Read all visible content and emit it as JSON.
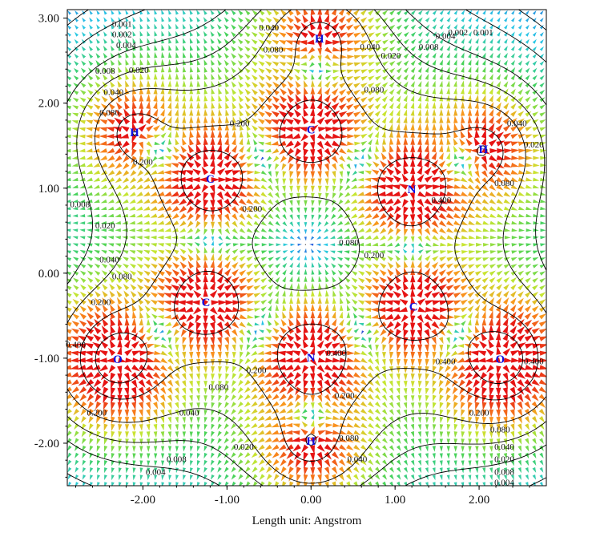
{
  "chart_data": {
    "type": "contour-vector-field",
    "x_axis": {
      "range": [
        -2.9,
        2.8
      ],
      "ticks": [
        -2.0,
        -1.0,
        0.0,
        1.0,
        2.0
      ],
      "tick_labels": [
        "-2.00",
        "-1.00",
        "0.00",
        "1.00",
        "2.00"
      ],
      "title": "Length unit: Angstrom"
    },
    "y_axis": {
      "range": [
        -2.5,
        3.1
      ],
      "ticks": [
        -2.0,
        -1.0,
        0.0,
        1.0,
        2.0,
        3.0
      ],
      "tick_labels": [
        "-2.00",
        "-1.00",
        "0.00",
        "1.00",
        "2.00",
        "3.00"
      ]
    },
    "atoms": [
      {
        "symbol": "H",
        "x": 0.1,
        "y": 2.75
      },
      {
        "symbol": "C",
        "x": 0.0,
        "y": 1.68
      },
      {
        "symbol": "H",
        "x": -2.1,
        "y": 1.65
      },
      {
        "symbol": "H",
        "x": 2.05,
        "y": 1.45
      },
      {
        "symbol": "C",
        "x": -1.2,
        "y": 1.1
      },
      {
        "symbol": "N",
        "x": 1.2,
        "y": 0.98
      },
      {
        "symbol": "C",
        "x": -1.25,
        "y": -0.35
      },
      {
        "symbol": "C",
        "x": 1.22,
        "y": -0.4
      },
      {
        "symbol": "O",
        "x": -2.3,
        "y": -1.02
      },
      {
        "symbol": "N",
        "x": 0.0,
        "y": -1.0
      },
      {
        "symbol": "O",
        "x": 2.25,
        "y": -1.02
      },
      {
        "symbol": "H",
        "x": 0.0,
        "y": -1.98
      }
    ],
    "contour_levels": [
      "0.001",
      "0.002",
      "0.004",
      "0.008",
      "0.020",
      "0.040",
      "0.080",
      "0.200",
      "0.400"
    ],
    "contour_labels": [
      {
        "text": "0.001",
        "x": -2.25,
        "y": 2.92
      },
      {
        "text": "0.002",
        "x": -2.25,
        "y": 2.8
      },
      {
        "text": "0.004",
        "x": -2.2,
        "y": 2.67
      },
      {
        "text": "0.008",
        "x": -2.45,
        "y": 2.37
      },
      {
        "text": "0.020",
        "x": -2.05,
        "y": 2.38
      },
      {
        "text": "0.040",
        "x": -2.35,
        "y": 2.12
      },
      {
        "text": "0.040",
        "x": -0.5,
        "y": 2.88
      },
      {
        "text": "0.080",
        "x": -0.45,
        "y": 2.62
      },
      {
        "text": "0.080",
        "x": -2.4,
        "y": 1.88
      },
      {
        "text": "0.200",
        "x": -2.0,
        "y": 1.3
      },
      {
        "text": "0.200",
        "x": -0.85,
        "y": 1.75
      },
      {
        "text": "0.200",
        "x": -0.7,
        "y": 0.75
      },
      {
        "text": "0.080",
        "x": 0.45,
        "y": 0.35
      },
      {
        "text": "0.200",
        "x": 0.75,
        "y": 0.2
      },
      {
        "text": "0.400",
        "x": 1.55,
        "y": 0.85
      },
      {
        "text": "0.040",
        "x": 0.7,
        "y": 2.65
      },
      {
        "text": "0.020",
        "x": 0.95,
        "y": 2.55
      },
      {
        "text": "0.080",
        "x": 0.75,
        "y": 2.15
      },
      {
        "text": "0.008",
        "x": 1.4,
        "y": 2.65
      },
      {
        "text": "0.004",
        "x": 1.6,
        "y": 2.78
      },
      {
        "text": "0.002",
        "x": 1.75,
        "y": 2.82
      },
      {
        "text": "0.001",
        "x": 2.05,
        "y": 2.82
      },
      {
        "text": "0.040",
        "x": 2.45,
        "y": 1.75
      },
      {
        "text": "0.020",
        "x": 2.65,
        "y": 1.5
      },
      {
        "text": "0.080",
        "x": 2.3,
        "y": 1.05
      },
      {
        "text": "0.008",
        "x": -2.75,
        "y": 0.8
      },
      {
        "text": "0.020",
        "x": -2.45,
        "y": 0.55
      },
      {
        "text": "0.040",
        "x": -2.4,
        "y": 0.15
      },
      {
        "text": "0.080",
        "x": -2.25,
        "y": -0.05
      },
      {
        "text": "0.200",
        "x": -2.5,
        "y": -0.35
      },
      {
        "text": "0.400",
        "x": -2.8,
        "y": -0.85
      },
      {
        "text": "0.200",
        "x": -2.55,
        "y": -1.65
      },
      {
        "text": "0.080",
        "x": -1.1,
        "y": -1.35
      },
      {
        "text": "0.040",
        "x": -1.45,
        "y": -1.65
      },
      {
        "text": "0.020",
        "x": -0.8,
        "y": -2.05
      },
      {
        "text": "0.008",
        "x": -1.6,
        "y": -2.2
      },
      {
        "text": "0.004",
        "x": -1.85,
        "y": -2.35
      },
      {
        "text": "0.200",
        "x": -0.65,
        "y": -1.15
      },
      {
        "text": "0.400",
        "x": 0.3,
        "y": -0.95
      },
      {
        "text": "0.200",
        "x": 0.4,
        "y": -1.45
      },
      {
        "text": "0.080",
        "x": 0.45,
        "y": -1.95
      },
      {
        "text": "0.040",
        "x": 0.55,
        "y": -2.2
      },
      {
        "text": "0.400",
        "x": 1.6,
        "y": -1.05
      },
      {
        "text": "0.400",
        "x": 2.65,
        "y": -1.05
      },
      {
        "text": "0.200",
        "x": 2.0,
        "y": -1.65
      },
      {
        "text": "0.080",
        "x": 2.25,
        "y": -1.85
      },
      {
        "text": "0.040",
        "x": 2.3,
        "y": -2.05
      },
      {
        "text": "0.020",
        "x": 2.3,
        "y": -2.2
      },
      {
        "text": "0.008",
        "x": 2.3,
        "y": -2.35
      },
      {
        "text": "0.004",
        "x": 2.3,
        "y": -2.47
      }
    ]
  }
}
